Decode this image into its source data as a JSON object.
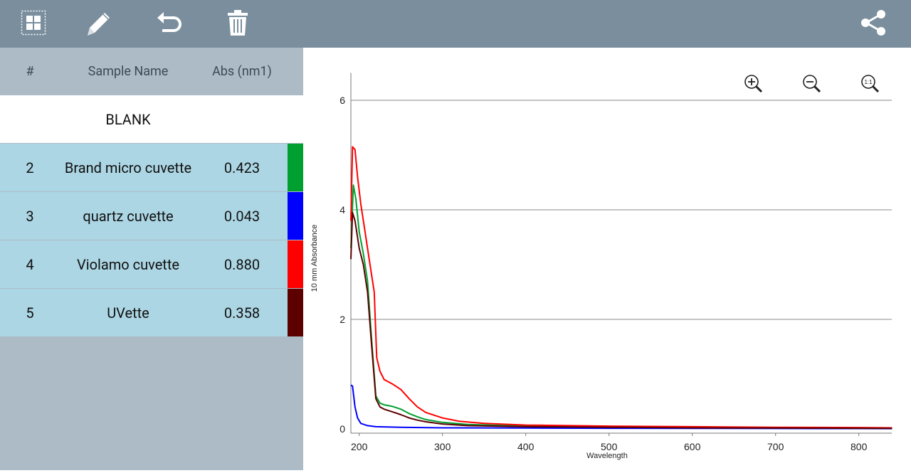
{
  "toolbar": {
    "buttons": [
      {
        "icon": "select-all-icon"
      },
      {
        "icon": "pencil-icon"
      },
      {
        "icon": "undo-icon"
      },
      {
        "icon": "trash-icon"
      }
    ],
    "share_icon": "share-icon"
  },
  "table": {
    "headers": {
      "num": "#",
      "name": "Sample Name",
      "abs": "Abs (nm1)"
    },
    "blank_label": "BLANK",
    "rows": [
      {
        "num": "2",
        "name": "Brand micro cuvette",
        "abs": "0.423",
        "color": "#00a030"
      },
      {
        "num": "3",
        "name": "quartz cuvette",
        "abs": "0.043",
        "color": "#0000ff"
      },
      {
        "num": "4",
        "name": "Violamo cuvette",
        "abs": "0.880",
        "color": "#ff0000"
      },
      {
        "num": "5",
        "name": "UVette",
        "abs": "0.358",
        "color": "#5c0000"
      }
    ]
  },
  "chart_data": {
    "type": "line",
    "xlabel": "Wavelength",
    "ylabel": "10 mm Absorbance",
    "xlim": [
      190,
      840
    ],
    "ylim": [
      0,
      6.5
    ],
    "xticks": [
      200,
      300,
      400,
      500,
      600,
      700,
      800
    ],
    "yticks": [
      0,
      2,
      4,
      6
    ],
    "grid": "horizontal",
    "series": [
      {
        "name": "Brand micro cuvette",
        "color": "#00a030",
        "points": [
          [
            190,
            3.3
          ],
          [
            193,
            4.45
          ],
          [
            196,
            4.2
          ],
          [
            200,
            3.6
          ],
          [
            205,
            3.2
          ],
          [
            210,
            2.7
          ],
          [
            215,
            1.6
          ],
          [
            220,
            0.6
          ],
          [
            225,
            0.47
          ],
          [
            230,
            0.44
          ],
          [
            240,
            0.41
          ],
          [
            250,
            0.36
          ],
          [
            260,
            0.28
          ],
          [
            270,
            0.22
          ],
          [
            280,
            0.17
          ],
          [
            300,
            0.12
          ],
          [
            330,
            0.08
          ],
          [
            400,
            0.05
          ],
          [
            500,
            0.035
          ],
          [
            600,
            0.025
          ],
          [
            700,
            0.02
          ],
          [
            800,
            0.015
          ],
          [
            840,
            0.01
          ]
        ]
      },
      {
        "name": "quartz cuvette",
        "color": "#0000ff",
        "points": [
          [
            190,
            0.8
          ],
          [
            192,
            0.78
          ],
          [
            195,
            0.4
          ],
          [
            198,
            0.2
          ],
          [
            202,
            0.1
          ],
          [
            210,
            0.06
          ],
          [
            220,
            0.04
          ],
          [
            250,
            0.03
          ],
          [
            300,
            0.02
          ],
          [
            400,
            0.015
          ],
          [
            500,
            0.012
          ],
          [
            600,
            0.01
          ],
          [
            700,
            0.008
          ],
          [
            800,
            0.006
          ],
          [
            840,
            0.005
          ]
        ]
      },
      {
        "name": "Violamo cuvette",
        "color": "#ff0000",
        "points": [
          [
            190,
            3.8
          ],
          [
            192,
            5.15
          ],
          [
            195,
            5.1
          ],
          [
            198,
            4.6
          ],
          [
            202,
            4.1
          ],
          [
            207,
            3.6
          ],
          [
            212,
            3.1
          ],
          [
            218,
            2.5
          ],
          [
            221,
            1.3
          ],
          [
            225,
            1.05
          ],
          [
            230,
            0.9
          ],
          [
            240,
            0.82
          ],
          [
            250,
            0.72
          ],
          [
            260,
            0.55
          ],
          [
            270,
            0.4
          ],
          [
            280,
            0.3
          ],
          [
            300,
            0.2
          ],
          [
            320,
            0.14
          ],
          [
            350,
            0.1
          ],
          [
            400,
            0.07
          ],
          [
            500,
            0.05
          ],
          [
            600,
            0.04
          ],
          [
            700,
            0.03
          ],
          [
            800,
            0.025
          ],
          [
            840,
            0.02
          ]
        ]
      },
      {
        "name": "UVette",
        "color": "#5c0000",
        "points": [
          [
            190,
            3.1
          ],
          [
            192,
            3.95
          ],
          [
            195,
            3.8
          ],
          [
            200,
            3.3
          ],
          [
            205,
            3.0
          ],
          [
            210,
            2.5
          ],
          [
            215,
            1.5
          ],
          [
            220,
            0.55
          ],
          [
            225,
            0.4
          ],
          [
            230,
            0.36
          ],
          [
            240,
            0.31
          ],
          [
            250,
            0.26
          ],
          [
            260,
            0.2
          ],
          [
            270,
            0.16
          ],
          [
            280,
            0.13
          ],
          [
            300,
            0.09
          ],
          [
            330,
            0.06
          ],
          [
            400,
            0.04
          ],
          [
            500,
            0.03
          ],
          [
            600,
            0.02
          ],
          [
            700,
            0.015
          ],
          [
            800,
            0.012
          ],
          [
            840,
            0.01
          ]
        ]
      }
    ]
  },
  "zoom_controls": [
    {
      "icon": "zoom-in-icon"
    },
    {
      "icon": "zoom-out-icon"
    },
    {
      "icon": "zoom-reset-icon"
    }
  ]
}
